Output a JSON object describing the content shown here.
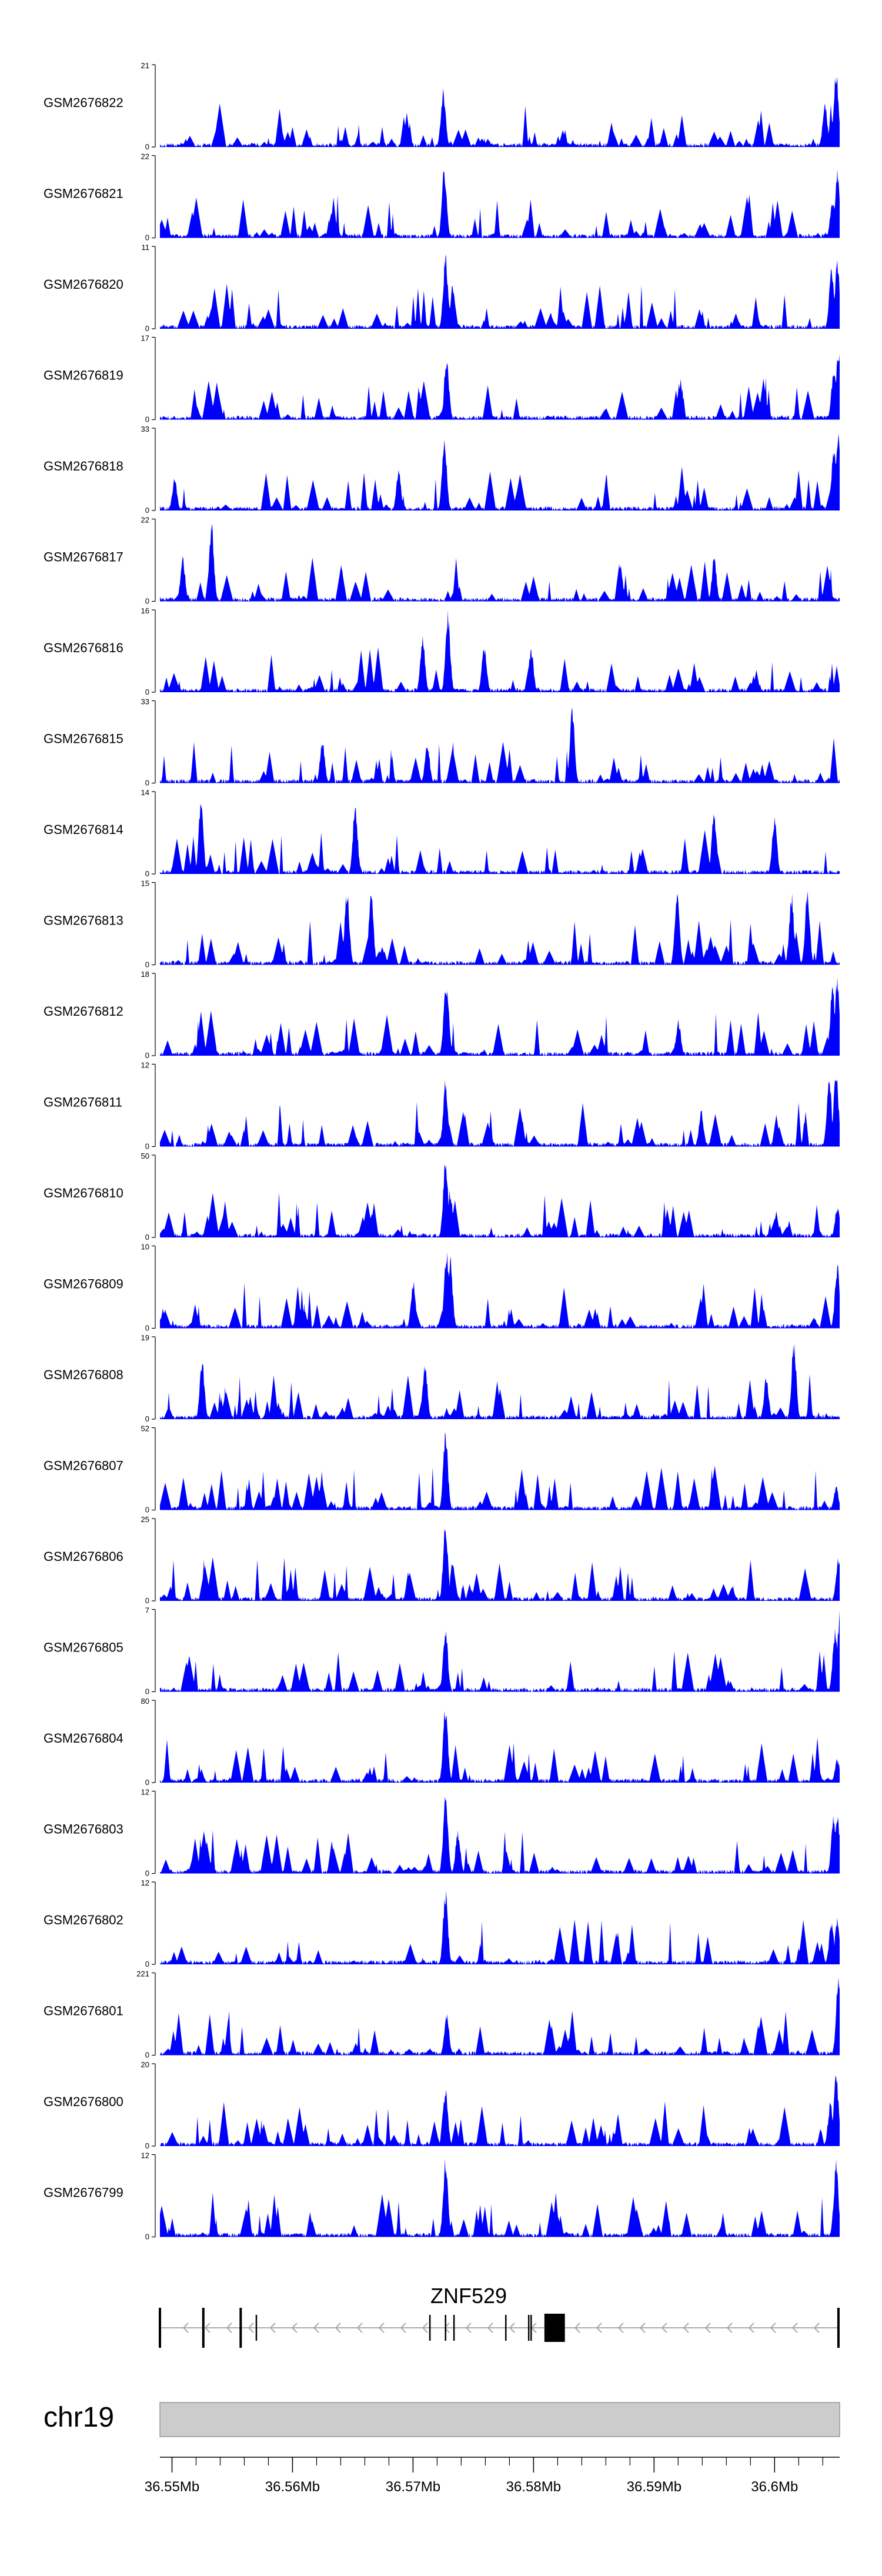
{
  "chart_data": {
    "type": "area",
    "title": "",
    "track_color": "#0000ff",
    "tracks": [
      {
        "name": "GSM2676822",
        "ymax": "21",
        "ymin": "0",
        "peaks": [
          [
            36.5725,
            0.75
          ],
          [
            36.6042,
            0.55
          ],
          [
            36.6051,
            1.0
          ]
        ]
      },
      {
        "name": "GSM2676821",
        "ymax": "22",
        "ymin": "0",
        "peaks": [
          [
            36.5726,
            0.9
          ],
          [
            36.6048,
            0.5
          ],
          [
            36.6052,
            0.85
          ]
        ]
      },
      {
        "name": "GSM2676820",
        "ymax": "11",
        "ymin": "0",
        "peaks": [
          [
            36.5727,
            0.95
          ],
          [
            36.5733,
            0.55
          ],
          [
            36.6047,
            0.75
          ],
          [
            36.6052,
            0.9
          ]
        ]
      },
      {
        "name": "GSM2676819",
        "ymax": "17",
        "ymin": "0",
        "peaks": [
          [
            36.5728,
            0.75
          ],
          [
            36.6049,
            0.65
          ],
          [
            36.6053,
            0.95
          ]
        ]
      },
      {
        "name": "GSM2676818",
        "ymax": "33",
        "ymin": "0",
        "peaks": [
          [
            36.5726,
            0.9
          ],
          [
            36.5502,
            0.4
          ],
          [
            36.5688,
            0.5
          ],
          [
            36.6049,
            0.8
          ],
          [
            36.6053,
            1.0
          ]
        ]
      },
      {
        "name": "GSM2676817",
        "ymax": "22",
        "ymin": "0",
        "peaks": [
          [
            36.5533,
            1.0
          ],
          [
            36.5509,
            0.55
          ],
          [
            36.5872,
            0.45
          ],
          [
            36.595,
            0.55
          ]
        ]
      },
      {
        "name": "GSM2676816",
        "ymax": "16",
        "ymin": "0",
        "peaks": [
          [
            36.5729,
            1.0
          ],
          [
            36.5708,
            0.7
          ],
          [
            36.5759,
            0.6
          ],
          [
            36.5798,
            0.55
          ]
        ]
      },
      {
        "name": "GSM2676815",
        "ymax": "33",
        "ymin": "0",
        "peaks": [
          [
            36.5832,
            0.95
          ],
          [
            36.5625,
            0.55
          ],
          [
            36.5712,
            0.5
          ]
        ]
      },
      {
        "name": "GSM2676814",
        "ymax": "14",
        "ymin": "0",
        "peaks": [
          [
            36.5524,
            0.9
          ],
          [
            36.5652,
            0.9
          ],
          [
            36.595,
            0.8
          ],
          [
            36.6,
            0.75
          ]
        ]
      },
      {
        "name": "GSM2676813",
        "ymax": "15",
        "ymin": "0",
        "peaks": [
          [
            36.5645,
            0.95
          ],
          [
            36.5665,
            0.9
          ],
          [
            36.5919,
            0.95
          ],
          [
            36.6014,
            0.9
          ],
          [
            36.6027,
            0.95
          ]
        ]
      },
      {
        "name": "GSM2676812",
        "ymax": "18",
        "ymin": "0",
        "peaks": [
          [
            36.5728,
            0.95
          ],
          [
            36.5727,
            0.8
          ],
          [
            36.592,
            0.45
          ],
          [
            36.6048,
            0.9
          ],
          [
            36.6052,
            1.0
          ]
        ]
      },
      {
        "name": "GSM2676811",
        "ymax": "12",
        "ymin": "0",
        "peaks": [
          [
            36.5727,
            0.85
          ],
          [
            36.5939,
            0.45
          ],
          [
            36.6045,
            0.9
          ],
          [
            36.6051,
            1.0
          ]
        ]
      },
      {
        "name": "GSM2676810",
        "ymax": "50",
        "ymin": "0",
        "peaks": [
          [
            36.5727,
            1.0
          ],
          [
            36.5731,
            0.6
          ],
          [
            36.6052,
            0.4
          ]
        ]
      },
      {
        "name": "GSM2676809",
        "ymax": "10",
        "ymin": "0",
        "peaks": [
          [
            36.5728,
            1.0
          ],
          [
            36.5731,
            0.9
          ],
          [
            36.57,
            0.6
          ],
          [
            36.6052,
            0.8
          ]
        ]
      },
      {
        "name": "GSM2676808",
        "ymax": "19",
        "ymin": "0",
        "peaks": [
          [
            36.5525,
            0.75
          ],
          [
            36.571,
            0.7
          ],
          [
            36.5993,
            0.55
          ],
          [
            36.6016,
            1.0
          ]
        ]
      },
      {
        "name": "GSM2676807",
        "ymax": "52",
        "ymin": "0",
        "peaks": [
          [
            36.5727,
            1.0
          ],
          [
            36.6051,
            0.3
          ]
        ]
      },
      {
        "name": "GSM2676806",
        "ymax": "25",
        "ymin": "0",
        "peaks": [
          [
            36.5727,
            1.0
          ],
          [
            36.5733,
            0.5
          ],
          [
            36.6053,
            0.55
          ]
        ]
      },
      {
        "name": "GSM2676805",
        "ymax": "7",
        "ymin": "0",
        "peaks": [
          [
            36.5727,
            0.8
          ],
          [
            36.605,
            0.8
          ],
          [
            36.6054,
            1.0
          ]
        ]
      },
      {
        "name": "GSM2676804",
        "ymax": "80",
        "ymin": "0",
        "peaks": [
          [
            36.5727,
            1.0
          ],
          [
            36.6052,
            0.3
          ]
        ]
      },
      {
        "name": "GSM2676803",
        "ymax": "12",
        "ymin": "0",
        "peaks": [
          [
            36.5727,
            1.0
          ],
          [
            36.5737,
            0.55
          ],
          [
            36.6049,
            0.75
          ],
          [
            36.6052,
            0.75
          ]
        ]
      },
      {
        "name": "GSM2676802",
        "ymax": "12",
        "ymin": "0",
        "peaks": [
          [
            36.5727,
            0.95
          ],
          [
            36.6047,
            0.55
          ],
          [
            36.6052,
            0.6
          ]
        ]
      },
      {
        "name": "GSM2676801",
        "ymax": "221",
        "ymin": "0",
        "peaks": [
          [
            36.5728,
            0.55
          ],
          [
            36.6053,
            1.0
          ]
        ]
      },
      {
        "name": "GSM2676800",
        "ymax": "20",
        "ymin": "0",
        "peaks": [
          [
            36.5727,
            0.75
          ],
          [
            36.6046,
            0.55
          ],
          [
            36.6051,
            0.95
          ]
        ]
      },
      {
        "name": "GSM2676799",
        "ymax": "12",
        "ymin": "0",
        "peaks": [
          [
            36.5727,
            1.0
          ],
          [
            36.6051,
            0.95
          ]
        ]
      }
    ],
    "gene": {
      "name": "ZNF529",
      "strand": "-",
      "start_mb": 36.549,
      "end_mb": 36.6053,
      "exons_mb": [
        36.549,
        36.5526,
        36.5557,
        36.557,
        36.5714,
        36.5727,
        36.5734,
        36.5777,
        36.5796,
        36.5798,
        36.6053
      ],
      "coding_block_mb": [
        36.5809,
        36.5826
      ]
    },
    "ideogram": {
      "chromosome": "chr19"
    },
    "x_axis": {
      "xlim": [
        36.549,
        36.6054
      ],
      "ticks_mb": [
        36.55,
        36.56,
        36.57,
        36.58,
        36.59,
        36.6
      ],
      "tick_labels": [
        "36.55Mb",
        "36.56Mb",
        "36.57Mb",
        "36.58Mb",
        "36.59Mb",
        "36.6Mb"
      ]
    }
  }
}
